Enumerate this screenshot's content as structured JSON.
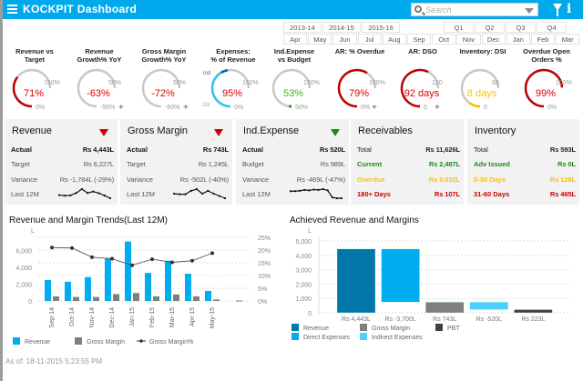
{
  "header": {
    "brand": "KOCKPIT",
    "title": "Dashboard",
    "search_placeholder": "Search",
    "colors": {
      "header": "#00a9ec"
    },
    "icons": [
      "menu-icon",
      "search-icon",
      "chevron-down-icon",
      "filter-icon",
      "info-icon"
    ]
  },
  "periods": {
    "years": [
      "2013-14",
      "2014-15",
      "2015-16"
    ],
    "quarters": [
      "Q1",
      "Q2",
      "Q3",
      "Q4"
    ],
    "months": [
      "Apr",
      "May",
      "Jun",
      "Jul",
      "Aug",
      "Sep",
      "Oct",
      "Nov",
      "Dec",
      "Jan",
      "Feb",
      "Mar"
    ]
  },
  "gauges": [
    {
      "title": [
        "Revenue vs",
        "Target"
      ],
      "value": "71%",
      "color": "#e00000",
      "arc": "#c00000",
      "min": "0%",
      "max": "150%",
      "fill": 0.473,
      "plus": false
    },
    {
      "title": [
        "Revenue",
        "Growth% YoY"
      ],
      "value": "-63%",
      "color": "#e00000",
      "arc": "#c00000",
      "min": "-50%",
      "max": "50%",
      "fill": 0,
      "plus": true
    },
    {
      "title": [
        "Gross Margin",
        "Growth% YoY"
      ],
      "value": "-72%",
      "color": "#e00000",
      "arc": "#c00000",
      "min": "-50%",
      "max": "50%",
      "fill": 0,
      "plus": true
    },
    {
      "title": [
        "Expenses:",
        "% of Revenue"
      ],
      "value": "95%",
      "color": "#e00000",
      "arc": "#2ec4f2",
      "min": "0%",
      "max": "150%",
      "fill": 0.633,
      "plus": false,
      "segments": {
        "upper": "Ind",
        "lower": "Dir"
      },
      "upper_color": "#00689a",
      "upper_fill": 0.08
    },
    {
      "title": [
        "Ind.Expense",
        "vs Budget"
      ],
      "value": "53%",
      "color": "#4caf1a",
      "arc": "#2e8b1a",
      "min": "50%",
      "max": "150%",
      "fill": 0.03,
      "plus": false
    },
    {
      "title": [
        "AR: % Overdue",
        ""
      ],
      "value": "79%",
      "color": "#e00000",
      "arc": "#c00000",
      "min": "0%",
      "max": "100%",
      "fill": 0.79,
      "plus": true
    },
    {
      "title": [
        "AR: DSO",
        ""
      ],
      "value": "92 days",
      "color": "#e00000",
      "arc": "#c00000",
      "min": "0",
      "max": "120",
      "fill": 0.767,
      "plus": true
    },
    {
      "title": [
        "Inventory: DSI",
        ""
      ],
      "value": "8 days",
      "color": "#ffc000",
      "arc": "#ffc000",
      "min": "0",
      "max": "60",
      "fill": 0.133,
      "plus": false
    },
    {
      "title": [
        "Overdue Open",
        "Orders %"
      ],
      "value": "99%",
      "color": "#e00000",
      "arc": "#c00000",
      "min": "0%",
      "max": "100%",
      "fill": 0.99,
      "plus": false
    }
  ],
  "cards": [
    {
      "title": "Revenue",
      "trend": "down",
      "trend_color": "#cc0000",
      "rows": [
        {
          "label": "Actual",
          "value": "Rs 4,443L",
          "bold": true
        },
        {
          "label": "Target",
          "value": "Rs 6,227L"
        },
        {
          "label": "Variance",
          "value": "Rs -1,784L (-29%)"
        },
        {
          "label": "Last 12M",
          "value": ""
        }
      ],
      "spark": [
        2.5,
        2.3,
        2.4,
        3.4,
        5.0,
        3.4,
        4.0,
        3.3,
        2.3,
        1.2
      ]
    },
    {
      "title": "Gross Margin",
      "trend": "down",
      "trend_color": "#cc0000",
      "rows": [
        {
          "label": "Actual",
          "value": "Rs 743L",
          "bold": true
        },
        {
          "label": "Target",
          "value": "Rs 1,245L"
        },
        {
          "label": "Variance",
          "value": "Rs -502L (-40%)"
        },
        {
          "label": "Last 12M",
          "value": ""
        }
      ],
      "spark": [
        0.55,
        0.5,
        0.5,
        0.8,
        0.95,
        0.55,
        0.8,
        0.55,
        0.35,
        0.15
      ]
    },
    {
      "title": "Ind.Expense",
      "trend": "down",
      "trend_color": "#1a8a1a",
      "rows": [
        {
          "label": "Actual",
          "value": "Rs 520L",
          "bold": true
        },
        {
          "label": "Budget",
          "value": "Rs 989L"
        },
        {
          "label": "Variance",
          "value": "Rs -469L (-47%)"
        },
        {
          "label": "Last 12M",
          "value": ""
        }
      ],
      "spark": [
        3,
        3,
        3.1,
        3.3,
        3.2,
        3.4,
        3.3,
        3.5,
        3.2,
        1.5,
        1.3,
        1.3
      ]
    },
    {
      "title": "Receivables",
      "rows": [
        {
          "label": "Total",
          "value": "Rs 11,626L",
          "color": "#222"
        },
        {
          "label": "Current",
          "value": "Rs 2,487L",
          "color": "#1a8a1a"
        },
        {
          "label": "Overdue",
          "value": "Rs 9,032L",
          "color": "#ffc000"
        },
        {
          "label": "180+ Days",
          "value": "Rs 107L",
          "color": "#cc0000"
        }
      ]
    },
    {
      "title": "Inventory",
      "rows": [
        {
          "label": "Total",
          "value": "Rs 593L",
          "color": "#222"
        },
        {
          "label": "Adv Issued",
          "value": "Rs 0L",
          "color": "#1a8a1a"
        },
        {
          "label": "0-30 Days",
          "value": "Rs 128L",
          "color": "#ffc000"
        },
        {
          "label": "31-60 Days",
          "value": "Rs 465L",
          "color": "#cc0000"
        }
      ]
    }
  ],
  "chart_data": [
    {
      "type": "bar",
      "title": "Revenue and Margin Trends(Last 12M)",
      "ylabel": "L",
      "ylim": [
        0,
        7600
      ],
      "y2lim": [
        0,
        25
      ],
      "yticks": [
        "0",
        "2,000",
        "4,000",
        "6,000"
      ],
      "y2ticks": [
        "0%",
        "5%",
        "10%",
        "15%",
        "20%",
        "25%"
      ],
      "categories": [
        "Sep-14",
        "Oct-14",
        "Nov-14",
        "Dec-14",
        "Jan-15",
        "Feb-15",
        "Mar-15",
        "Apr-15",
        "May-15",
        ""
      ],
      "series": [
        {
          "name": "Revenue",
          "kind": "bar",
          "color": "#00adef",
          "values": [
            2500,
            2300,
            2850,
            5050,
            7100,
            3350,
            4800,
            3250,
            1200,
            0
          ]
        },
        {
          "name": "Gross Margin",
          "kind": "bar",
          "color": "#7f7f7f",
          "values": [
            550,
            480,
            480,
            820,
            950,
            550,
            780,
            550,
            180,
            0
          ]
        },
        {
          "name": "Gross Margin%",
          "kind": "line",
          "axis": "right",
          "color": "#444444",
          "values": [
            21,
            20.8,
            17.2,
            16.6,
            14,
            16.4,
            15.2,
            15.8,
            18.8,
            null
          ]
        }
      ],
      "grid": true,
      "legend": "bottom"
    },
    {
      "type": "bar",
      "subtype": "waterfall",
      "title": "Achieved Revenue and Margins",
      "ylabel": "L",
      "ylim": [
        0,
        5000
      ],
      "yticks": [
        "0",
        "1,000",
        "2,000",
        "3,000",
        "4,000",
        "5,000"
      ],
      "categories": [
        "Rs 4,443L",
        "Rs -3,700L",
        "Rs 743L",
        "Rs -520L",
        "Rs 223L"
      ],
      "bars": [
        {
          "name": "Revenue",
          "from": 0,
          "to": 4443,
          "color": "#0077a8"
        },
        {
          "name": "Direct Expenses",
          "from": 743,
          "to": 4443,
          "color": "#00adef"
        },
        {
          "name": "Gross Margin",
          "from": 0,
          "to": 743,
          "color": "#7f7f7f"
        },
        {
          "name": "Indirect Expenses",
          "from": 223,
          "to": 743,
          "color": "#4dcfff"
        },
        {
          "name": "PBT",
          "from": 0,
          "to": 223,
          "color": "#404040"
        }
      ],
      "grid": true,
      "legend": "bottom"
    }
  ],
  "footer": "As of: 18-11-2015 5:23:55 PM"
}
